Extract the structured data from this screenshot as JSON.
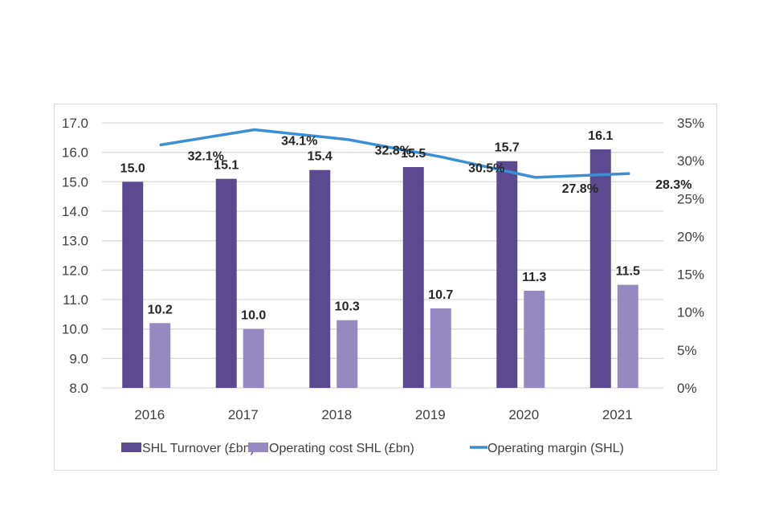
{
  "chart_data": {
    "type": "bar",
    "title": "",
    "xlabel": "",
    "ylabel": "",
    "categories": [
      "2016",
      "2017",
      "2018",
      "2019",
      "2020",
      "2021"
    ],
    "series": [
      {
        "name": "SHL Turnover (£bn)",
        "kind": "bar",
        "axis": "left",
        "color": "#5b4a8f",
        "values": [
          15.0,
          15.1,
          15.4,
          15.5,
          15.7,
          16.1
        ],
        "labels": [
          "15.0",
          "15.1",
          "15.4",
          "15.5",
          "15.7",
          "16.1"
        ]
      },
      {
        "name": "Operating cost SHL (£bn)",
        "kind": "bar",
        "axis": "left",
        "color": "#9688c1",
        "values": [
          10.2,
          10.0,
          10.3,
          10.7,
          11.3,
          11.5
        ],
        "labels": [
          "10.2",
          "10.0",
          "10.3",
          "10.7",
          "11.3",
          "11.5"
        ]
      },
      {
        "name": "Operating margin (SHL)",
        "kind": "line",
        "axis": "right",
        "color": "#3b8fd4",
        "values": [
          32.1,
          34.1,
          32.8,
          30.5,
          27.8,
          28.3
        ],
        "labels": [
          "32.1%",
          "34.1%",
          "32.8%",
          "30.5%",
          "27.8%",
          "28.3%"
        ]
      }
    ],
    "left_axis": {
      "ylim": [
        8.0,
        17.0
      ],
      "ticks": [
        "17.0",
        "16.0",
        "15.0",
        "14.0",
        "13.0",
        "12.0",
        "11.0",
        "10.0",
        "9.0",
        "8.0"
      ]
    },
    "right_axis": {
      "ylim": [
        0,
        35
      ],
      "ticks": [
        "35%",
        "30%",
        "25%",
        "20%",
        "15%",
        "10%",
        "5%",
        "0%"
      ]
    },
    "grid": true,
    "legend": {
      "position": "bottom",
      "items": [
        "SHL Turnover (£bn)",
        "Operating cost SHL (£bn)",
        "Operating margin (SHL)"
      ]
    }
  }
}
